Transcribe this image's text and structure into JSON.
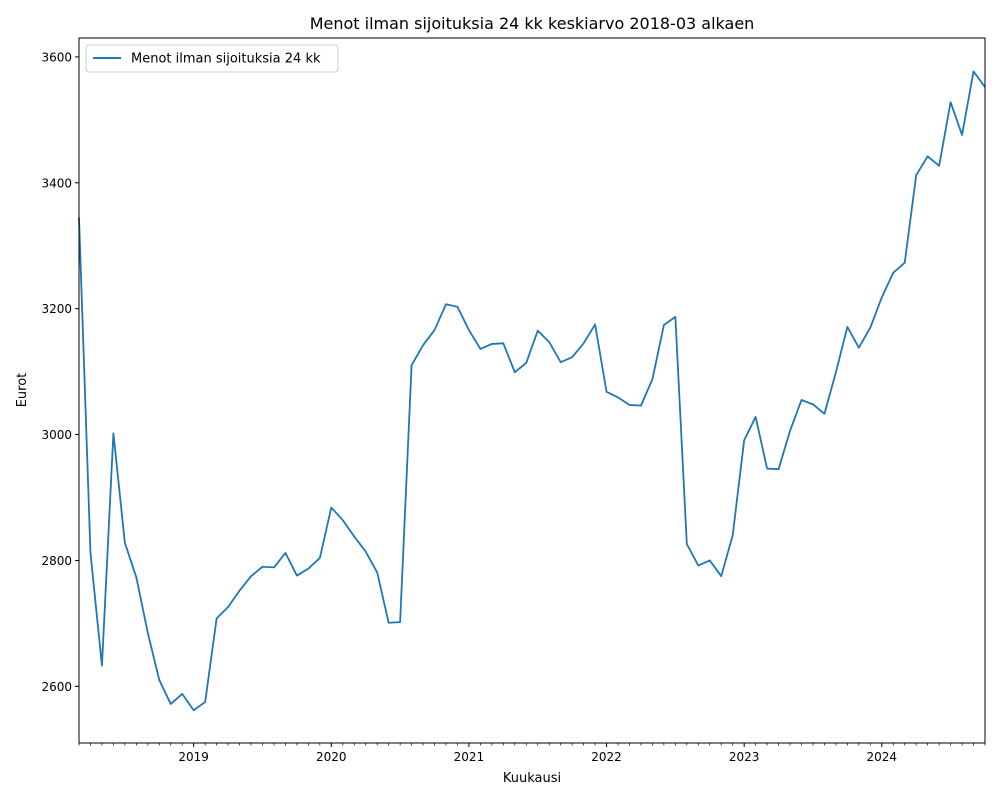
{
  "chart_data": {
    "type": "line",
    "title": "Menot ilman sijoituksia 24 kk keskiarvo 2018-03 alkaen",
    "xlabel": "Kuukausi",
    "ylabel": "Eurot",
    "xlim": [
      "2018-03",
      "2024-10"
    ],
    "ylim": [
      2510,
      3630
    ],
    "yticks": [
      2600,
      2800,
      3000,
      3200,
      3400,
      3600
    ],
    "xticks": [
      "2019",
      "2020",
      "2021",
      "2022",
      "2023",
      "2024"
    ],
    "grid": false,
    "legend_position": "top-left",
    "colors": {
      "series": "#1f77b4",
      "axes": "#000000",
      "legend_border": "#cccccc"
    },
    "x": [
      "2018-03",
      "2018-04",
      "2018-05",
      "2018-06",
      "2018-07",
      "2018-08",
      "2018-09",
      "2018-10",
      "2018-11",
      "2018-12",
      "2019-01",
      "2019-02",
      "2019-03",
      "2019-04",
      "2019-05",
      "2019-06",
      "2019-07",
      "2019-08",
      "2019-09",
      "2019-10",
      "2019-11",
      "2019-12",
      "2020-01",
      "2020-02",
      "2020-03",
      "2020-04",
      "2020-05",
      "2020-06",
      "2020-07",
      "2020-08",
      "2020-09",
      "2020-10",
      "2020-11",
      "2020-12",
      "2021-01",
      "2021-02",
      "2021-03",
      "2021-04",
      "2021-05",
      "2021-06",
      "2021-07",
      "2021-08",
      "2021-09",
      "2021-10",
      "2021-11",
      "2021-12",
      "2022-01",
      "2022-02",
      "2022-03",
      "2022-04",
      "2022-05",
      "2022-06",
      "2022-07",
      "2022-08",
      "2022-09",
      "2022-10",
      "2022-11",
      "2022-12",
      "2023-01",
      "2023-02",
      "2023-03",
      "2023-04",
      "2023-05",
      "2023-06",
      "2023-07",
      "2023-08",
      "2023-09",
      "2023-10",
      "2023-11",
      "2023-12",
      "2024-01",
      "2024-02",
      "2024-03",
      "2024-04",
      "2024-05",
      "2024-06",
      "2024-07",
      "2024-08",
      "2024-09",
      "2024-10"
    ],
    "series": [
      {
        "name": "Menot ilman sijoituksia 24 kk",
        "values": [
          3345,
          2812,
          2633,
          3002,
          2828,
          2773,
          2685,
          2610,
          2572,
          2588,
          2562,
          2575,
          2708,
          2726,
          2752,
          2775,
          2790,
          2789,
          2812,
          2776,
          2787,
          2804,
          2884,
          2864,
          2838,
          2814,
          2781,
          2701,
          2702,
          3110,
          3142,
          3166,
          3207,
          3203,
          3166,
          3136,
          3144,
          3145,
          3099,
          3114,
          3165,
          3147,
          3115,
          3123,
          3145,
          3175,
          3068,
          3059,
          3047,
          3046,
          3088,
          3174,
          3187,
          2826,
          2792,
          2800,
          2775,
          2840,
          2991,
          3028,
          2946,
          2945,
          3006,
          3055,
          3048,
          3033,
          3099,
          3171,
          3138,
          3170,
          3218,
          3257,
          3273,
          3412,
          3442,
          3427,
          3528,
          3476,
          3577,
          3552
        ]
      }
    ]
  }
}
